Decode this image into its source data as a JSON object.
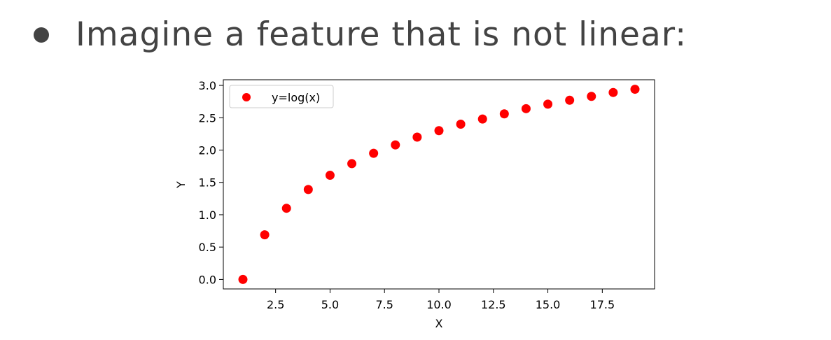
{
  "slide": {
    "bullet_text": "Imagine a feature that is not linear:"
  },
  "chart_data": {
    "type": "scatter",
    "series": [
      {
        "name": "y=log(x)",
        "x": [
          1,
          2,
          3,
          4,
          5,
          6,
          7,
          8,
          9,
          10,
          11,
          12,
          13,
          14,
          15,
          16,
          17,
          18,
          19
        ],
        "y": [
          0.0,
          0.69,
          1.1,
          1.39,
          1.61,
          1.79,
          1.95,
          2.08,
          2.2,
          2.3,
          2.4,
          2.48,
          2.56,
          2.64,
          2.71,
          2.77,
          2.83,
          2.89,
          2.94
        ],
        "color": "#ff0000"
      }
    ],
    "xlabel": "X",
    "ylabel": "Y",
    "xlim": [
      0.1,
      19.9
    ],
    "ylim": [
      -0.147,
      3.087
    ],
    "xticks": [
      2.5,
      5.0,
      7.5,
      10.0,
      12.5,
      15.0,
      17.5
    ],
    "xtick_labels": [
      "2.5",
      "5.0",
      "7.5",
      "10.0",
      "12.5",
      "15.0",
      "17.5"
    ],
    "yticks": [
      0.0,
      0.5,
      1.0,
      1.5,
      2.0,
      2.5,
      3.0
    ],
    "ytick_labels": [
      "0.0",
      "0.5",
      "1.0",
      "1.5",
      "2.0",
      "2.5",
      "3.0"
    ],
    "grid": false,
    "legend": "top-left"
  }
}
